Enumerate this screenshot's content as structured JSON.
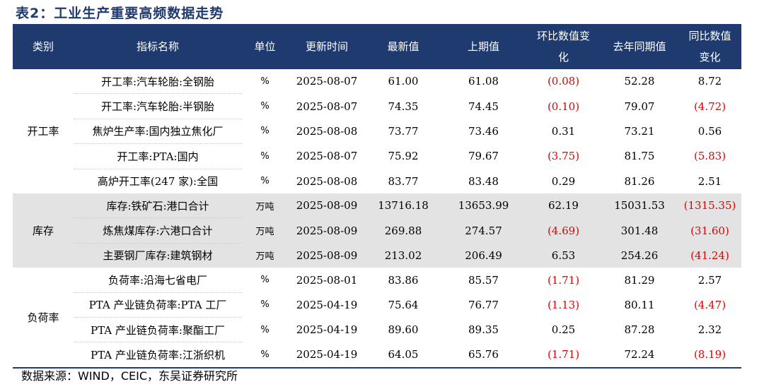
{
  "title": "表2：工业生产重要高频数据走势",
  "headers": [
    "类别",
    "指标名称",
    "单位",
    "更新时间",
    "最新值",
    "上期值",
    "环比数值变化",
    "去年同期值",
    "同比数值变化"
  ],
  "groups": [
    {
      "category": "开工率",
      "rows": [
        {
          "name": "开工率:汽车轮胎:全钢胎",
          "unit": "%",
          "date": "2025-08-07",
          "latest": "61.00",
          "prev": "61.08",
          "mom": "(0.08)",
          "yago": "52.28",
          "yoy": "8.72"
        },
        {
          "name": "开工率:汽车轮胎:半钢胎",
          "unit": "%",
          "date": "2025-08-07",
          "latest": "74.35",
          "prev": "74.45",
          "mom": "(0.10)",
          "yago": "79.07",
          "yoy": "(4.72)"
        },
        {
          "name": "焦炉生产率:国内独立焦化厂",
          "unit": "%",
          "date": "2025-08-08",
          "latest": "73.77",
          "prev": "73.46",
          "mom": "0.31",
          "yago": "73.21",
          "yoy": "0.56"
        },
        {
          "name": "开工率:PTA:国内",
          "unit": "%",
          "date": "2025-08-07",
          "latest": "75.92",
          "prev": "79.67",
          "mom": "(3.75)",
          "yago": "81.75",
          "yoy": "(5.83)"
        },
        {
          "name": "高炉开工率(247 家):全国",
          "unit": "%",
          "date": "2025-08-08",
          "latest": "83.77",
          "prev": "83.48",
          "mom": "0.29",
          "yago": "81.26",
          "yoy": "2.51"
        }
      ]
    },
    {
      "category": "库存",
      "rows": [
        {
          "name": "库存:铁矿石:港口合计",
          "unit": "万吨",
          "date": "2025-08-09",
          "latest": "13716.18",
          "prev": "13653.99",
          "mom": "62.19",
          "yago": "15031.53",
          "yoy": "(1315.35)"
        },
        {
          "name": "炼焦煤库存:六港口合计",
          "unit": "万吨",
          "date": "2025-08-09",
          "latest": "269.88",
          "prev": "274.57",
          "mom": "(4.69)",
          "yago": "301.48",
          "yoy": "(31.60)"
        },
        {
          "name": "主要钢厂库存:建筑钢材",
          "unit": "万吨",
          "date": "2025-08-09",
          "latest": "213.02",
          "prev": "206.49",
          "mom": "6.53",
          "yago": "254.26",
          "yoy": "(41.24)"
        }
      ]
    },
    {
      "category": "负荷率",
      "rows": [
        {
          "name": "负荷率:沿海七省电厂",
          "unit": "%",
          "date": "2025-08-01",
          "latest": "83.86",
          "prev": "85.57",
          "mom": "(1.71)",
          "yago": "81.29",
          "yoy": "2.57"
        },
        {
          "name": "PTA 产业链负荷率:PTA 工厂",
          "unit": "%",
          "date": "2025-04-19",
          "latest": "75.64",
          "prev": "76.77",
          "mom": "(1.13)",
          "yago": "80.11",
          "yoy": "(4.47)"
        },
        {
          "name": "PTA 产业链负荷率:聚酯工厂",
          "unit": "%",
          "date": "2025-04-19",
          "latest": "89.60",
          "prev": "89.35",
          "mom": "0.25",
          "yago": "87.28",
          "yoy": "2.32"
        },
        {
          "name": "PTA 产业链负荷率:江浙织机",
          "unit": "%",
          "date": "2025-04-19",
          "latest": "64.05",
          "prev": "65.76",
          "mom": "(1.71)",
          "yago": "72.24",
          "yoy": "(8.19)"
        }
      ]
    }
  ],
  "source": "数据来源：WIND，CEIC，东吴证券研究所",
  "colors": {
    "header_bg": "#1f3a6e",
    "group_shade": "#e3e3e3",
    "negative": "#e00000"
  }
}
